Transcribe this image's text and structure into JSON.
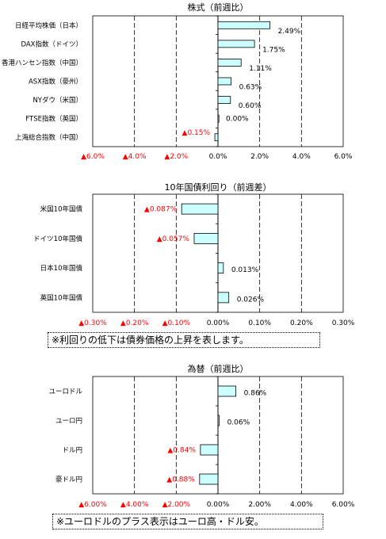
{
  "chart_data": [
    {
      "type": "bar",
      "orientation": "horizontal",
      "title": "株式（前週比）",
      "categories": [
        "日経平均株価（日本）",
        "DAX指数（ドイツ）",
        "香港ハンセン指数（中国）",
        "ASX指数（豪州）",
        "NYダウ（米国）",
        "FTSE指数（英国）",
        "上海総合指数（中国）"
      ],
      "values": [
        2.49,
        1.75,
        1.11,
        0.63,
        0.6,
        0.0,
        -0.15
      ],
      "value_labels": [
        "2.49%",
        "1.75%",
        "1.11%",
        "0.63%",
        "0.60%",
        "0.00%",
        "▲0.15%"
      ],
      "xlim": [
        -6,
        6
      ],
      "ticks": [
        -6,
        -4,
        -2,
        0,
        2,
        4,
        6
      ],
      "tick_labels": [
        "▲6.0%",
        "▲4.0%",
        "▲2.0%",
        "0.0%",
        "2.0%",
        "4.0%",
        "6.0%"
      ],
      "grid": true
    },
    {
      "type": "bar",
      "orientation": "horizontal",
      "title": "10年国債利回り（前週差）",
      "categories": [
        "米国10年国債",
        "ドイツ10年国債",
        "日本10年国債",
        "英国10年国債"
      ],
      "values": [
        -0.087,
        -0.057,
        0.013,
        0.026
      ],
      "value_labels": [
        "▲0.087%",
        "▲0.057%",
        "0.013%",
        "0.026%"
      ],
      "xlim": [
        -0.3,
        0.3
      ],
      "ticks": [
        -0.3,
        -0.2,
        -0.1,
        0,
        0.1,
        0.2,
        0.3
      ],
      "tick_labels": [
        "▲0.30%",
        "▲0.20%",
        "▲0.10%",
        "0.00%",
        "0.10%",
        "0.20%",
        "0.30%"
      ],
      "grid": true
    },
    {
      "type": "bar",
      "orientation": "horizontal",
      "title": "為替（前週比）",
      "categories": [
        "ユーロドル",
        "ユーロ円",
        "ドル円",
        "豪ドル円"
      ],
      "values": [
        0.86,
        0.06,
        -0.84,
        -0.88
      ],
      "value_labels": [
        "0.86%",
        "0.06%",
        "▲0.84%",
        "▲0.88%"
      ],
      "xlim": [
        -6,
        6
      ],
      "ticks": [
        -6,
        -4,
        -2,
        0,
        2,
        4,
        6
      ],
      "tick_labels": [
        "▲6.00%",
        "▲4.00%",
        "▲2.00%",
        "0.00%",
        "2.00%",
        "4.00%",
        "6.00%"
      ],
      "grid": true
    }
  ],
  "notes": {
    "bonds": "※利回りの低下は債券価格の上昇を表します。",
    "fx": "※ユーロドルのプラス表示はユーロ高・ドル安。"
  },
  "colors": {
    "bar_fill": "#ccffff",
    "bar_stroke": "#000000",
    "negative_text": "#ff0000",
    "text": "#000000",
    "grid": "#000000"
  }
}
